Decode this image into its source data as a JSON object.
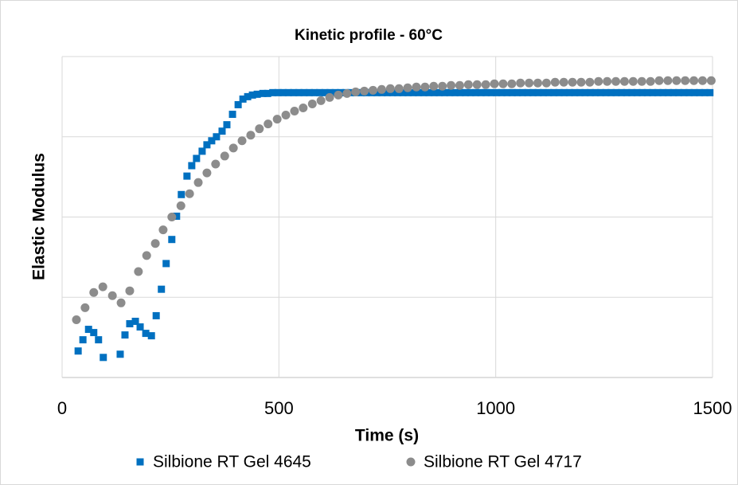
{
  "chart_data": {
    "type": "scatter",
    "title": "Kinetic profile  - 60°C",
    "x_label": "Time (s)",
    "y_label": "Elastic Modulus",
    "xlim": [
      0,
      1500
    ],
    "xticks": [
      0,
      500,
      1000,
      1500
    ],
    "ylim": [
      0,
      4
    ],
    "yticks": [
      0,
      1,
      2,
      3,
      4
    ],
    "y_tick_labels_shown": false,
    "grid": true,
    "legend": "bottom",
    "series": [
      {
        "name": "Silbione RT Gel 4645",
        "color": "#0070c0",
        "marker": "square",
        "x": [
          37,
          48,
          61,
          73,
          84,
          95,
          134,
          145,
          156,
          169,
          180,
          193,
          206,
          217,
          229,
          240,
          253,
          264,
          275,
          288,
          299,
          310,
          323,
          334,
          345,
          356,
          369,
          380,
          393,
          406,
          417,
          428,
          439,
          450,
          463,
          474,
          486,
          498,
          510,
          522,
          534,
          546,
          558,
          570,
          582,
          594,
          606,
          618,
          630,
          642,
          654,
          666,
          678,
          690,
          702,
          714,
          726,
          738,
          750,
          762,
          774,
          786,
          798,
          810,
          822,
          834,
          846,
          858,
          870,
          882,
          894,
          906,
          918,
          930,
          942,
          954,
          966,
          978,
          990,
          1002,
          1014,
          1026,
          1038,
          1050,
          1062,
          1074,
          1086,
          1098,
          1110,
          1122,
          1134,
          1146,
          1158,
          1170,
          1182,
          1194,
          1206,
          1218,
          1230,
          1242,
          1254,
          1266,
          1278,
          1290,
          1302,
          1314,
          1326,
          1338,
          1350,
          1362,
          1374,
          1386,
          1398,
          1410,
          1422,
          1434,
          1446,
          1458,
          1470,
          1482,
          1494
        ],
        "values": [
          0.33,
          0.47,
          0.6,
          0.56,
          0.47,
          0.25,
          0.29,
          0.53,
          0.67,
          0.7,
          0.63,
          0.55,
          0.52,
          0.77,
          1.1,
          1.42,
          1.72,
          2.01,
          2.28,
          2.51,
          2.64,
          2.73,
          2.82,
          2.9,
          2.95,
          3.0,
          3.07,
          3.15,
          3.28,
          3.4,
          3.47,
          3.5,
          3.52,
          3.53,
          3.54,
          3.54,
          3.55,
          3.55,
          3.55,
          3.55,
          3.55,
          3.55,
          3.55,
          3.55,
          3.55,
          3.55,
          3.55,
          3.55,
          3.55,
          3.55,
          3.55,
          3.55,
          3.55,
          3.55,
          3.55,
          3.55,
          3.55,
          3.55,
          3.55,
          3.55,
          3.55,
          3.55,
          3.55,
          3.55,
          3.55,
          3.55,
          3.55,
          3.55,
          3.55,
          3.55,
          3.55,
          3.55,
          3.55,
          3.55,
          3.55,
          3.55,
          3.55,
          3.55,
          3.55,
          3.55,
          3.55,
          3.55,
          3.55,
          3.55,
          3.55,
          3.55,
          3.55,
          3.55,
          3.55,
          3.55,
          3.55,
          3.55,
          3.55,
          3.55,
          3.55,
          3.55,
          3.55,
          3.55,
          3.55,
          3.55,
          3.55,
          3.55,
          3.55,
          3.55,
          3.55,
          3.55,
          3.55,
          3.55,
          3.55,
          3.55,
          3.55,
          3.55,
          3.55,
          3.55,
          3.55,
          3.55,
          3.55,
          3.55,
          3.55,
          3.55,
          3.55
        ]
      },
      {
        "name": "Silbione RT Gel 4717",
        "color": "#8c8c8c",
        "marker": "circle",
        "x": [
          33,
          53,
          73,
          94,
          116,
          136,
          156,
          176,
          195,
          215,
          233,
          253,
          274,
          294,
          314,
          334,
          354,
          375,
          395,
          415,
          435,
          455,
          475,
          496,
          516,
          536,
          556,
          577,
          597,
          617,
          637,
          657,
          677,
          697,
          717,
          737,
          757,
          777,
          797,
          817,
          837,
          857,
          877,
          897,
          917,
          937,
          957,
          977,
          997,
          1017,
          1037,
          1057,
          1077,
          1097,
          1117,
          1137,
          1157,
          1177,
          1197,
          1217,
          1237,
          1257,
          1277,
          1297,
          1317,
          1337,
          1357,
          1377,
          1397,
          1417,
          1437,
          1457,
          1477,
          1497
        ],
        "values": [
          0.72,
          0.87,
          1.06,
          1.13,
          1.02,
          0.93,
          1.08,
          1.32,
          1.52,
          1.67,
          1.84,
          2.0,
          2.14,
          2.29,
          2.43,
          2.55,
          2.66,
          2.76,
          2.86,
          2.95,
          3.02,
          3.1,
          3.16,
          3.22,
          3.27,
          3.32,
          3.36,
          3.41,
          3.45,
          3.49,
          3.52,
          3.54,
          3.56,
          3.57,
          3.58,
          3.59,
          3.6,
          3.6,
          3.61,
          3.62,
          3.62,
          3.63,
          3.63,
          3.64,
          3.64,
          3.65,
          3.65,
          3.65,
          3.66,
          3.66,
          3.66,
          3.67,
          3.67,
          3.67,
          3.67,
          3.68,
          3.68,
          3.68,
          3.68,
          3.68,
          3.69,
          3.69,
          3.69,
          3.69,
          3.69,
          3.69,
          3.69,
          3.7,
          3.7,
          3.7,
          3.7,
          3.7,
          3.7,
          3.7
        ]
      }
    ]
  }
}
